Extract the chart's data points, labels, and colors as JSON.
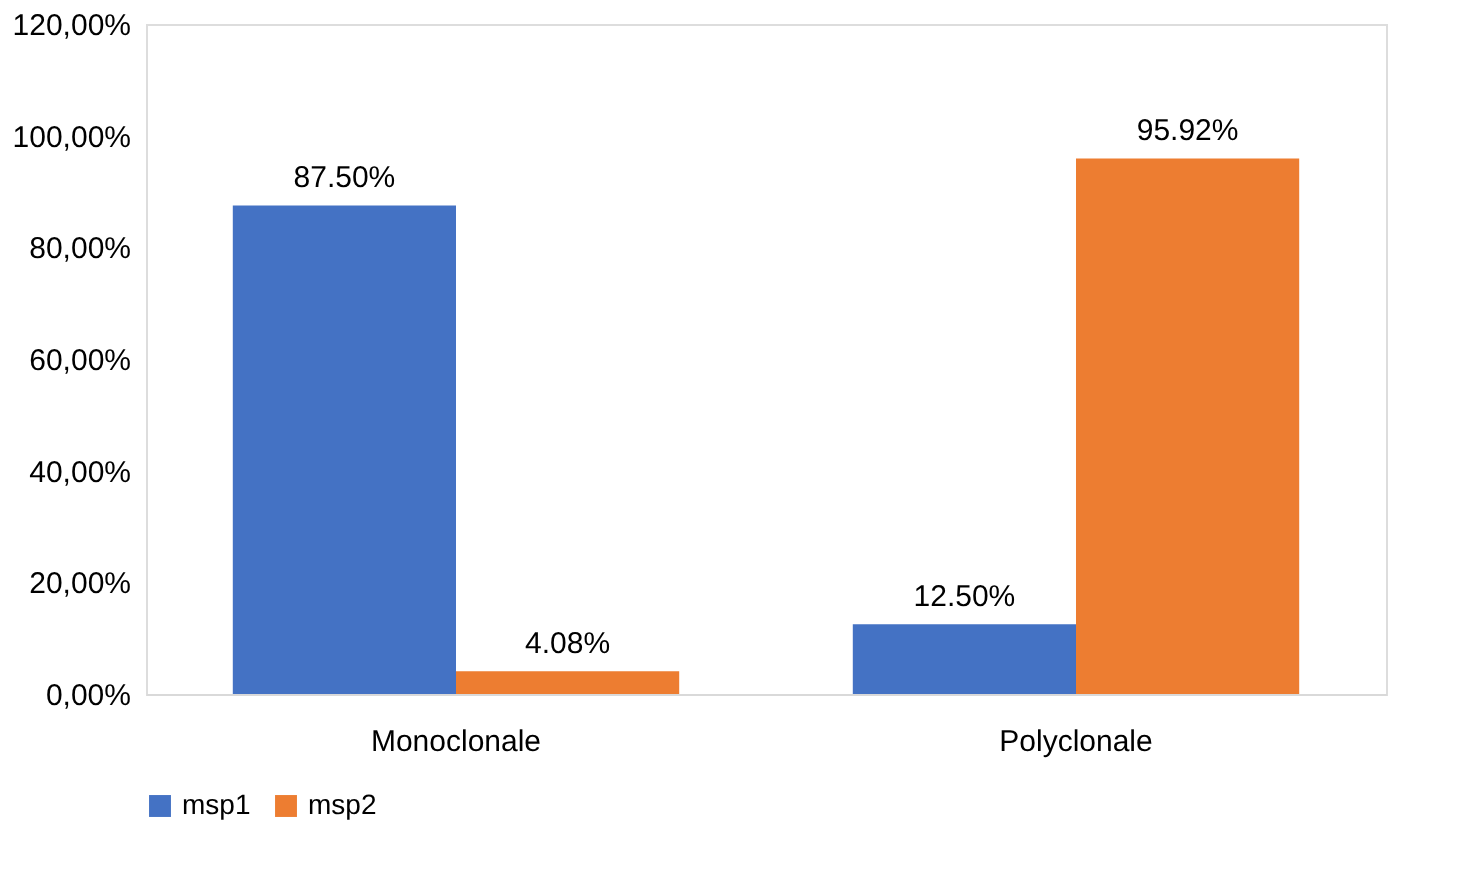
{
  "chart_data": {
    "type": "bar",
    "categories": [
      "Monoclonale",
      "Polyclonale"
    ],
    "series": [
      {
        "name": "msp1",
        "color": "#4472c4",
        "values": [
          87.5,
          12.5
        ],
        "value_labels": [
          "87.50%",
          "12.50%"
        ]
      },
      {
        "name": "msp2",
        "color": "#ed7d31",
        "values": [
          4.08,
          95.92
        ],
        "value_labels": [
          "4.08%",
          "95.92%"
        ]
      }
    ],
    "ylim": [
      0,
      120
    ],
    "yticks": [
      {
        "value": 0,
        "label": "0,00%"
      },
      {
        "value": 20,
        "label": "20,00%"
      },
      {
        "value": 40,
        "label": "40,00%"
      },
      {
        "value": 60,
        "label": "60,00%"
      },
      {
        "value": 80,
        "label": "80,00%"
      },
      {
        "value": 100,
        "label": "100,00%"
      },
      {
        "value": 120,
        "label": "120,00%"
      }
    ],
    "grid": false,
    "legend": "bottom"
  }
}
